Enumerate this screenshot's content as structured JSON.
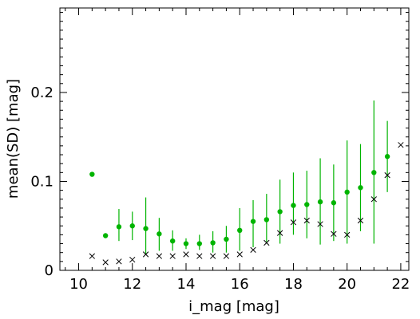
{
  "chart_data": {
    "type": "scatter",
    "xlabel": "i_mag [mag]",
    "ylabel": "mean(SD) [mag]",
    "xlim": [
      9.3,
      22.3
    ],
    "ylim": [
      0,
      0.295
    ],
    "x_ticks": [
      10,
      12,
      14,
      16,
      18,
      20,
      22
    ],
    "x_tick_labels": [
      "10",
      "12",
      "14",
      "16",
      "18",
      "20",
      "22"
    ],
    "y_ticks": [
      0,
      0.1,
      0.2
    ],
    "y_tick_labels": [
      "0",
      "0.1",
      "0.2"
    ],
    "grid": false,
    "series": [
      {
        "marker": "filled-circle-with-errorbars",
        "color": "#00b400",
        "x": [
          10.5,
          11.0,
          11.5,
          12.0,
          12.5,
          13.0,
          13.5,
          14.0,
          14.5,
          15.0,
          15.5,
          16.0,
          16.5,
          17.0,
          17.5,
          18.0,
          18.5,
          19.0,
          19.5,
          20.0,
          20.5,
          21.0,
          21.5
        ],
        "y": [
          0.108,
          0.039,
          0.049,
          0.05,
          0.047,
          0.041,
          0.033,
          0.03,
          0.03,
          0.031,
          0.035,
          0.045,
          0.055,
          0.057,
          0.066,
          0.073,
          0.074,
          0.077,
          0.076,
          0.088,
          0.093,
          0.11,
          0.128
        ],
        "yerr_low": [
          0.108,
          0.039,
          0.033,
          0.034,
          0.018,
          0.022,
          0.022,
          0.024,
          0.023,
          0.02,
          0.02,
          0.022,
          0.026,
          0.032,
          0.03,
          0.04,
          0.036,
          0.029,
          0.033,
          0.03,
          0.044,
          0.03,
          0.088
        ],
        "yerr_high": [
          0.108,
          0.039,
          0.069,
          0.066,
          0.082,
          0.059,
          0.045,
          0.036,
          0.04,
          0.044,
          0.05,
          0.07,
          0.079,
          0.086,
          0.102,
          0.11,
          0.112,
          0.126,
          0.119,
          0.146,
          0.142,
          0.191,
          0.168
        ]
      },
      {
        "marker": "x",
        "color": "#000000",
        "x": [
          10.5,
          11.0,
          11.5,
          12.0,
          12.5,
          13.0,
          13.5,
          14.0,
          14.5,
          15.0,
          15.5,
          16.0,
          16.5,
          17.0,
          17.5,
          18.0,
          18.5,
          19.0,
          19.5,
          20.0,
          20.5,
          21.0,
          21.5,
          22.0
        ],
        "y": [
          0.016,
          0.009,
          0.01,
          0.012,
          0.018,
          0.016,
          0.016,
          0.018,
          0.016,
          0.016,
          0.016,
          0.018,
          0.023,
          0.031,
          0.042,
          0.054,
          0.056,
          0.052,
          0.041,
          0.04,
          0.056,
          0.08,
          0.107,
          0.141
        ]
      }
    ]
  }
}
